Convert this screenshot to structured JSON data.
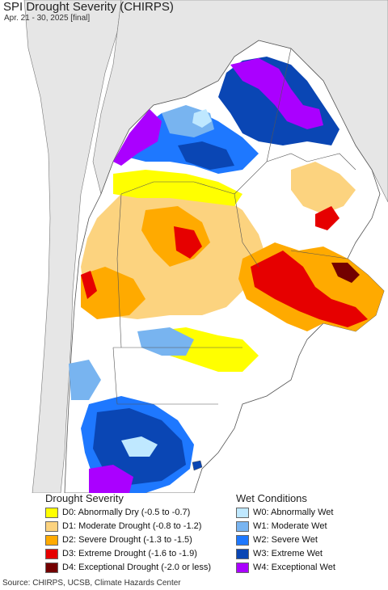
{
  "title": "SPI Drought Severity (CHIRPS)",
  "subtitle": "Apr. 21 - 30, 2025 [final]",
  "legend": {
    "drought_heading": "Drought Severity",
    "wet_heading": "Wet Conditions",
    "drought_items": [
      {
        "label": "D0: Abnormally Dry (-0.5 to -0.7)",
        "color": "#ffff00"
      },
      {
        "label": "D1: Moderate Drought (-0.8 to -1.2)",
        "color": "#fcd37f"
      },
      {
        "label": "D2: Severe Drought (-1.3 to -1.5)",
        "color": "#ffaa00"
      },
      {
        "label": "D3: Extreme Drought (-1.6 to -1.9)",
        "color": "#e60000"
      },
      {
        "label": "D4: Exceptional Drought (-2.0 or less)",
        "color": "#730000"
      }
    ],
    "wet_items": [
      {
        "label": "W0: Abnormally Wet",
        "color": "#bfe8ff"
      },
      {
        "label": "W1: Moderate Wet",
        "color": "#78b4f0"
      },
      {
        "label": "W2: Severe Wet",
        "color": "#1e78ff"
      },
      {
        "label": "W3: Extreme Wet",
        "color": "#0a46b4"
      },
      {
        "label": "W4: Exceptional Wet",
        "color": "#aa00ff"
      }
    ]
  },
  "source": "Source: CHIRPS, UCSB, Climate Hazards Center",
  "colors": {
    "ocean": "#ffffff",
    "outside": "#e6e6e6",
    "land": "#ffffff",
    "border": "#555555"
  }
}
